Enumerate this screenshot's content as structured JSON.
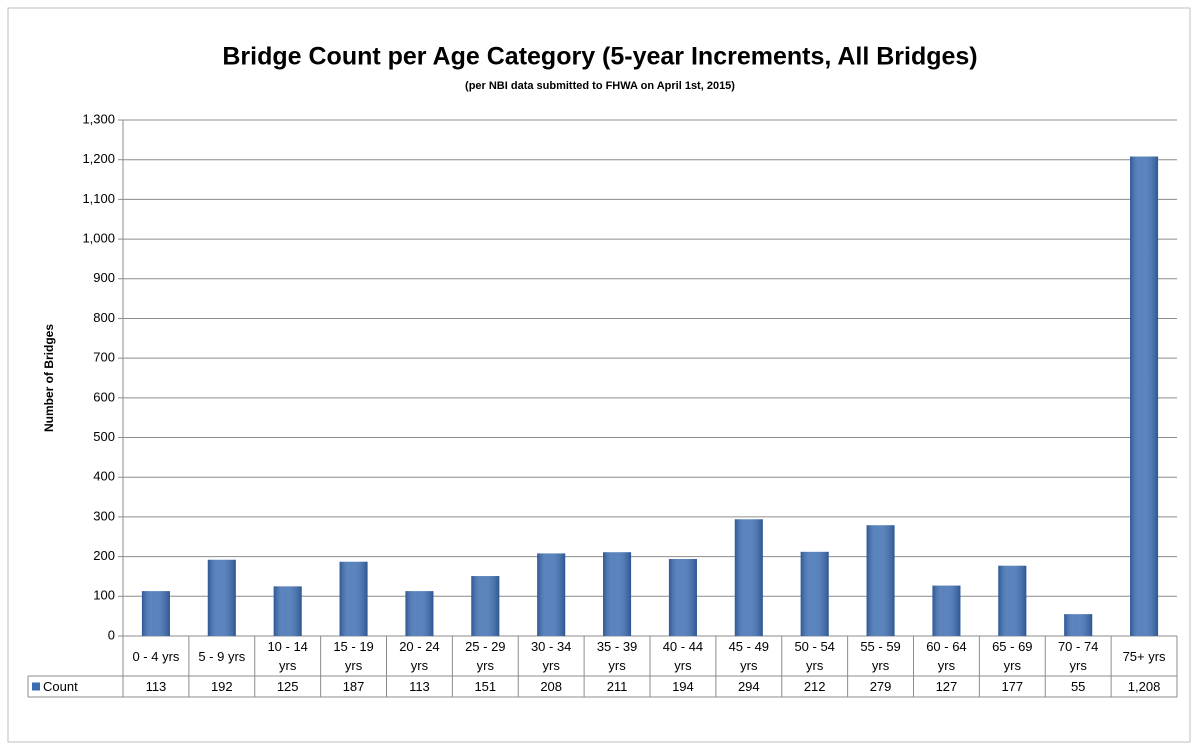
{
  "chart_data": {
    "type": "bar",
    "title": "Bridge Count per Age Category (5-year Increments, All Bridges)",
    "subtitle": "(per NBI data submitted to FHWA on April 1st, 2015)",
    "y_label": "Number of Bridges",
    "categories": [
      "0 - 4 yrs",
      "5 - 9 yrs",
      "10 - 14 yrs",
      "15 - 19 yrs",
      "20 - 24 yrs",
      "25 - 29 yrs",
      "30 - 34 yrs",
      "35 - 39 yrs",
      "40 - 44 yrs",
      "45 - 49 yrs",
      "50 - 54 yrs",
      "55 - 59 yrs",
      "60 - 64 yrs",
      "65 - 69 yrs",
      "70 - 74 yrs",
      "75+ yrs"
    ],
    "series": [
      {
        "name": "Count",
        "color": "#3b6db3",
        "values": [
          113,
          192,
          125,
          187,
          113,
          151,
          208,
          211,
          194,
          294,
          212,
          279,
          127,
          177,
          55,
          1208
        ],
        "value_labels": [
          "113",
          "192",
          "125",
          "187",
          "113",
          "151",
          "208",
          "211",
          "194",
          "294",
          "212",
          "279",
          "127",
          "177",
          "55",
          "1,208"
        ]
      }
    ],
    "ylim": [
      0,
      1300
    ],
    "yticks": [
      0,
      100,
      200,
      300,
      400,
      500,
      600,
      700,
      800,
      900,
      {
        "value": 1000,
        "label": "1,000"
      },
      {
        "value": 1100,
        "label": "1,100"
      },
      {
        "value": 1200,
        "label": "1,200"
      },
      {
        "value": 1300,
        "label": "1,300"
      }
    ],
    "grid": true
  }
}
